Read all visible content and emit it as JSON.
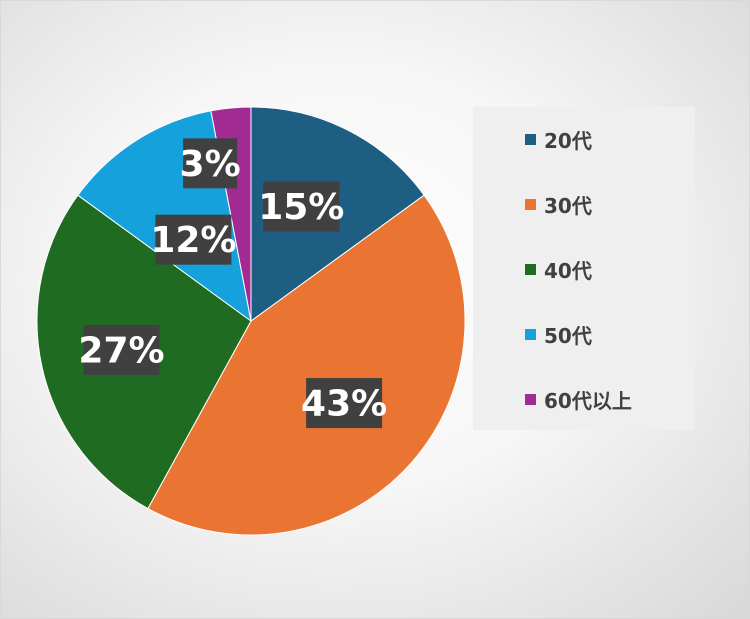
{
  "chart_data": {
    "type": "pie",
    "categories": [
      "20代",
      "30代",
      "40代",
      "50代",
      "60代以上"
    ],
    "values": [
      15,
      43,
      27,
      12,
      3
    ],
    "data_labels": [
      "15%",
      "43%",
      "27%",
      "12%",
      "3%"
    ],
    "colors": [
      "#1d5e82",
      "#ea7532",
      "#1f6b22",
      "#15a2dc",
      "#a12a93"
    ],
    "start_angle_deg": 0,
    "direction": "clockwise",
    "legend_position": "right",
    "title": ""
  }
}
